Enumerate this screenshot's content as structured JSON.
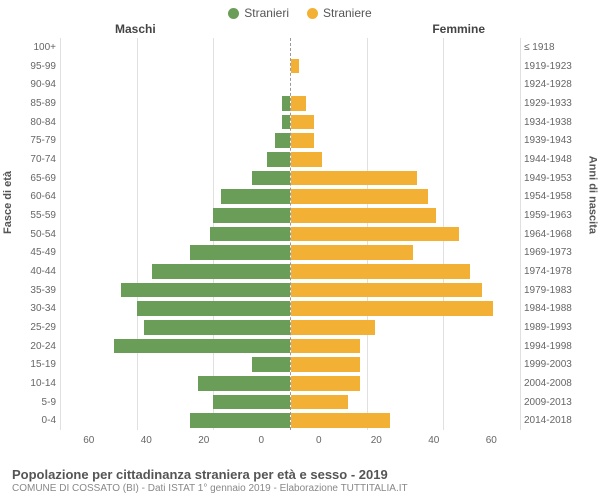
{
  "chart": {
    "type": "population-pyramid",
    "legend": {
      "male": {
        "label": "Stranieri",
        "color": "#6a9e58"
      },
      "female": {
        "label": "Straniere",
        "color": "#f2b134"
      }
    },
    "columns": {
      "left": "Maschi",
      "right": "Femmine"
    },
    "y_left_title": "Fasce di età",
    "y_right_title": "Anni di nascita",
    "age_labels": [
      "100+",
      "95-99",
      "90-94",
      "85-89",
      "80-84",
      "75-79",
      "70-74",
      "65-69",
      "60-64",
      "55-59",
      "50-54",
      "45-49",
      "40-44",
      "35-39",
      "30-34",
      "25-29",
      "20-24",
      "15-19",
      "10-14",
      "5-9",
      "0-4"
    ],
    "birth_labels": [
      "≤ 1918",
      "1919-1923",
      "1924-1928",
      "1929-1933",
      "1934-1938",
      "1939-1943",
      "1944-1948",
      "1949-1953",
      "1954-1958",
      "1959-1963",
      "1964-1968",
      "1969-1973",
      "1974-1978",
      "1979-1983",
      "1984-1988",
      "1989-1993",
      "1994-1998",
      "1999-2003",
      "2004-2008",
      "2009-2013",
      "2014-2018"
    ],
    "male_values": [
      0,
      0,
      0,
      2,
      2,
      4,
      6,
      10,
      18,
      20,
      21,
      26,
      36,
      44,
      40,
      38,
      46,
      10,
      24,
      20,
      26
    ],
    "female_values": [
      0,
      2,
      0,
      4,
      6,
      6,
      8,
      33,
      36,
      38,
      44,
      32,
      47,
      50,
      53,
      22,
      18,
      18,
      18,
      15,
      26
    ],
    "x_max": 60,
    "x_ticks_left": [
      "60",
      "40",
      "20",
      "0"
    ],
    "x_ticks_right": [
      "0",
      "20",
      "40",
      "60"
    ],
    "grid_positions_left_pct": [
      0,
      33.33,
      66.67
    ],
    "grid_positions_right_pct": [
      33.33,
      66.67,
      100
    ],
    "grid_color": "#e0e0e0",
    "background": "#ffffff",
    "bar_height_ratio": 0.78
  },
  "footer": {
    "title": "Popolazione per cittadinanza straniera per età e sesso - 2019",
    "subtitle": "COMUNE DI COSSATO (BI) - Dati ISTAT 1° gennaio 2019 - Elaborazione TUTTITALIA.IT"
  }
}
